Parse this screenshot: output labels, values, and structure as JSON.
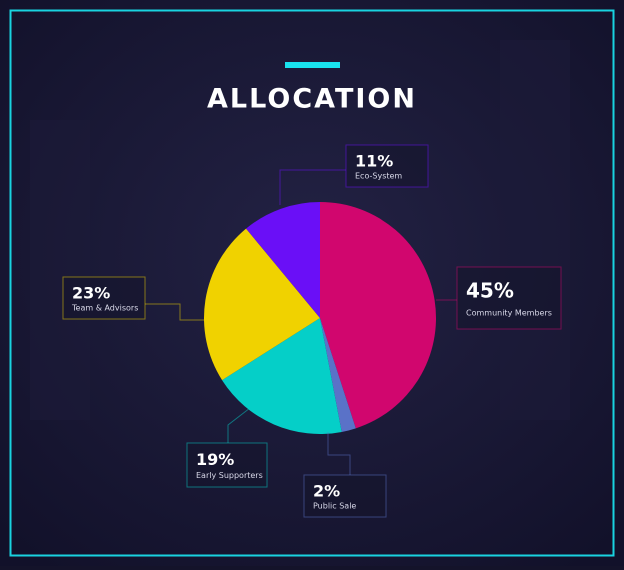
{
  "chart_data": {
    "type": "pie",
    "title": "ALLOCATION",
    "categories": [
      "Community Members",
      "Public Sale",
      "Early Supporters",
      "Team & Advisors",
      "Eco-System"
    ],
    "values": [
      45,
      2,
      19,
      23,
      11
    ],
    "value_labels": [
      "45%",
      "2%",
      "19%",
      "23%",
      "11%"
    ],
    "colors": [
      "#d1066e",
      "#5a72c8",
      "#05cfc8",
      "#f0d200",
      "#6a0ff7"
    ]
  }
}
